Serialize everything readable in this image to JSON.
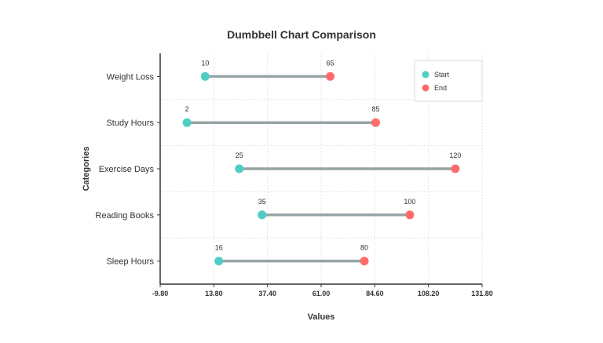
{
  "chart_data": {
    "type": "dumbbell",
    "title": "Dumbbell Chart Comparison",
    "xlabel": "Values",
    "ylabel": "Categories",
    "xlim": [
      -9.8,
      131.8
    ],
    "xticks": [
      "-9.80",
      "13.80",
      "37.40",
      "61.00",
      "84.60",
      "108.20",
      "131.80"
    ],
    "grid": true,
    "legend_position": "top-right",
    "categories": [
      "Weight Loss",
      "Study Hours",
      "Exercise Days",
      "Reading Books",
      "Sleep Hours"
    ],
    "series": [
      {
        "name": "Start",
        "color": "#4ecdc4",
        "values": [
          10,
          2,
          25,
          35,
          16
        ]
      },
      {
        "name": "End",
        "color": "#ff6b6b",
        "values": [
          65,
          85,
          120,
          100,
          80
        ]
      }
    ],
    "connector_color": "#95a5a6"
  }
}
